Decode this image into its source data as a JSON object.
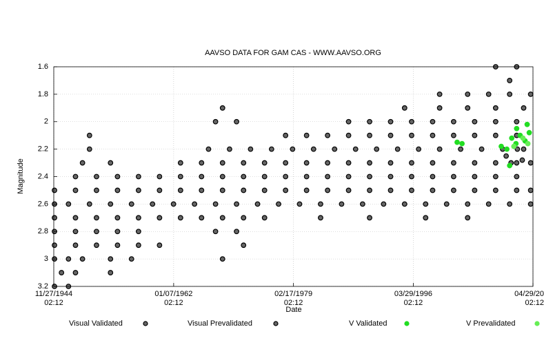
{
  "chart_data": {
    "type": "scatter",
    "title": "AAVSO DATA FOR GAM CAS - WWW.AAVSO.ORG",
    "x_label": "Date",
    "y_label": "Magnitude",
    "xlim": [
      1944.9,
      2013.33
    ],
    "xticks": [
      {
        "value": 1944.9,
        "label": "11/27/1944 02:12"
      },
      {
        "value": 1962.02,
        "label": "01/07/1962 02:12"
      },
      {
        "value": 1979.13,
        "label": "02/17/1979 02:12"
      },
      {
        "value": 1996.24,
        "label": "03/29/1996 02:12"
      },
      {
        "value": 2013.33,
        "label": "04/29/20 02:12"
      }
    ],
    "ylim": [
      1.6,
      3.2
    ],
    "yticks": [
      1.6,
      1.8,
      2,
      2.2,
      2.4,
      2.6,
      2.8,
      3,
      3.2
    ],
    "y_inverted": true,
    "grid": true,
    "legend": "bottom",
    "series": [
      {
        "name": "Visual Validated",
        "color": "#000000",
        "x": [
          1945,
          1948,
          1951,
          1954,
          1957,
          1960,
          1963,
          1966,
          1969,
          1972,
          1975,
          1978,
          1981,
          1984,
          1987,
          1990,
          1993,
          1996,
          1999,
          2002,
          2005,
          2008,
          2011,
          2013,
          1945,
          1947,
          1950,
          1953,
          1956,
          1959,
          1962,
          1965,
          1968,
          1971,
          1974,
          1977,
          1980,
          1983,
          1986,
          1989,
          1992,
          1995,
          1998,
          2001,
          2004,
          2007,
          2010,
          2013,
          1948,
          1951,
          1954,
          1957,
          1960,
          1963,
          1966,
          1969,
          1972,
          1975,
          1978,
          1981,
          1984,
          1987,
          1990,
          1993,
          1996,
          1999,
          2002,
          2005,
          2008,
          2011,
          1949,
          1953,
          1963,
          1966,
          1969,
          1972,
          1975,
          1978,
          1981,
          1984,
          1987,
          1990,
          1993,
          1996,
          1999,
          2002,
          2005,
          2008,
          2011,
          2013,
          1950,
          1967,
          1970,
          1973,
          1976,
          1979,
          1982,
          1985,
          1988,
          1991,
          1994,
          1997,
          2000,
          2003,
          2006,
          2009,
          2012,
          1950,
          1978,
          1981,
          1984,
          1987,
          1990,
          1993,
          1996,
          1999,
          2002,
          2005,
          2008,
          2011,
          1968,
          1971,
          1987,
          1990,
          1993,
          1996,
          1999,
          2002,
          2005,
          2008,
          2011,
          1969,
          1995,
          2000,
          2004,
          2008,
          2012,
          2000,
          2004,
          2007,
          2010,
          2013,
          2010,
          2008,
          2011,
          1945,
          1948,
          1951,
          1954,
          1957,
          1960,
          1963,
          1966,
          1969,
          1972,
          1975,
          1983,
          1990,
          1998,
          2004,
          1945,
          1948,
          1951,
          1954,
          1957,
          1968,
          1971,
          1945,
          1948,
          1951,
          1954,
          1957,
          1960,
          1972,
          1945,
          1947,
          1949,
          1953,
          1956,
          1969,
          1946,
          1948,
          1953,
          1945,
          1947
        ],
        "values": [
          2.5,
          2.5,
          2.5,
          2.5,
          2.5,
          2.5,
          2.5,
          2.5,
          2.5,
          2.5,
          2.5,
          2.5,
          2.5,
          2.5,
          2.5,
          2.5,
          2.5,
          2.5,
          2.5,
          2.5,
          2.5,
          2.5,
          2.5,
          2.5,
          2.6,
          2.6,
          2.6,
          2.6,
          2.6,
          2.6,
          2.6,
          2.6,
          2.6,
          2.6,
          2.6,
          2.6,
          2.6,
          2.6,
          2.6,
          2.6,
          2.6,
          2.6,
          2.6,
          2.6,
          2.6,
          2.6,
          2.6,
          2.6,
          2.4,
          2.4,
          2.4,
          2.4,
          2.4,
          2.4,
          2.4,
          2.4,
          2.4,
          2.4,
          2.4,
          2.4,
          2.4,
          2.4,
          2.4,
          2.4,
          2.4,
          2.4,
          2.4,
          2.4,
          2.4,
          2.4,
          2.3,
          2.3,
          2.3,
          2.3,
          2.3,
          2.3,
          2.3,
          2.3,
          2.3,
          2.3,
          2.3,
          2.3,
          2.3,
          2.3,
          2.3,
          2.3,
          2.3,
          2.3,
          2.3,
          2.3,
          2.2,
          2.2,
          2.2,
          2.2,
          2.2,
          2.2,
          2.2,
          2.2,
          2.2,
          2.2,
          2.2,
          2.2,
          2.2,
          2.2,
          2.2,
          2.2,
          2.2,
          2.1,
          2.1,
          2.1,
          2.1,
          2.1,
          2.1,
          2.1,
          2.1,
          2.1,
          2.1,
          2.1,
          2.1,
          2.1,
          2.0,
          2.0,
          2.0,
          2.0,
          2.0,
          2.0,
          2.0,
          2.0,
          2.0,
          2.0,
          2.0,
          1.9,
          1.9,
          1.9,
          1.9,
          1.9,
          1.9,
          1.8,
          1.8,
          1.8,
          1.8,
          1.8,
          1.7,
          1.6,
          1.6,
          2.7,
          2.7,
          2.7,
          2.7,
          2.7,
          2.7,
          2.7,
          2.7,
          2.7,
          2.7,
          2.7,
          2.7,
          2.7,
          2.7,
          2.7,
          2.8,
          2.8,
          2.8,
          2.8,
          2.8,
          2.8,
          2.8,
          2.9,
          2.9,
          2.9,
          2.9,
          2.9,
          2.9,
          2.9,
          3.0,
          3.0,
          3.0,
          3.0,
          3.0,
          3.0,
          3.1,
          3.1,
          3.1,
          3.2,
          3.2
        ]
      },
      {
        "name": "Visual Prevalidated",
        "color": "#000000",
        "x": [
          2009.5,
          2010.2,
          2011.1,
          2011.8
        ],
        "values": [
          2.25,
          2.3,
          2.2,
          2.28
        ]
      },
      {
        "name": "V Validated",
        "color": "#22dd22",
        "x": [
          2002.5,
          2003.2,
          2008.8,
          2009.6,
          2010.3,
          2010.9,
          2011.5,
          2012.2,
          2012.8,
          2010.0,
          2011.0,
          2012.5
        ],
        "values": [
          2.15,
          2.16,
          2.18,
          2.2,
          2.12,
          2.16,
          2.1,
          2.14,
          2.08,
          2.32,
          2.05,
          2.02
        ]
      },
      {
        "name": "V Prevalidated",
        "color": "#66ee55",
        "x": [
          2010.6,
          2011.9,
          2012.6
        ],
        "values": [
          2.18,
          2.12,
          2.16
        ]
      }
    ]
  }
}
